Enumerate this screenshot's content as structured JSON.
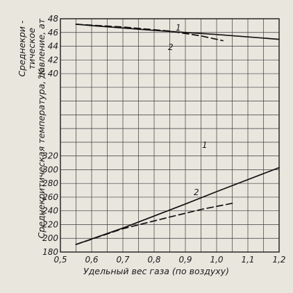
{
  "chart_data": {
    "type": "line",
    "xlabel": "Удельный вес газа (по воздуху)",
    "x_ticks": [
      "0,5",
      "0,6",
      "0,7",
      "0,8",
      "0,9",
      "1,0",
      "1,1",
      "1,2"
    ],
    "xlim": [
      0.5,
      1.2
    ],
    "grid": true,
    "panels": [
      {
        "name": "pressure",
        "ylabel": "Среднекри-тическое давление, ат",
        "ylabel_lines": [
          "Среднекри -",
          "тическое",
          "давление, ат"
        ],
        "y_ticks": [
          "48",
          "46",
          "44",
          "42",
          "40"
        ],
        "ylim": [
          40,
          48
        ],
        "series": [
          {
            "name": "1",
            "style": "solid",
            "x": [
              0.55,
              0.6,
              0.8,
              1.0,
              1.2
            ],
            "values": [
              47.2,
              47.0,
              46.3,
              45.7,
              45.0
            ]
          },
          {
            "name": "2",
            "style": "dashed",
            "x": [
              0.55,
              0.7,
              0.85,
              0.95,
              1.02
            ],
            "values": [
              47.2,
              46.8,
              46.2,
              45.5,
              44.8
            ]
          }
        ]
      },
      {
        "name": "temperature",
        "ylabel": "Среднекритическая температура, °K",
        "ylabel_main": "Среднекритическая температура,",
        "ylabel_unit": "°K",
        "y_ticks": [
          "320",
          "300",
          "280",
          "260",
          "240",
          "220",
          "200",
          "180"
        ],
        "ylim": [
          180,
          320
        ],
        "series": [
          {
            "name": "1",
            "style": "solid",
            "x": [
              0.55,
              0.7,
              0.9,
              1.0,
              1.2
            ],
            "values": [
              191,
              215,
              250,
              268,
              303
            ]
          },
          {
            "name": "2",
            "style": "dashed",
            "x": [
              0.55,
              0.7,
              0.85,
              0.95,
              1.05
            ],
            "values": [
              191,
              214,
              231,
              242,
              251
            ]
          }
        ]
      }
    ],
    "curve_labels": [
      "1",
      "2",
      "1",
      "2"
    ]
  }
}
